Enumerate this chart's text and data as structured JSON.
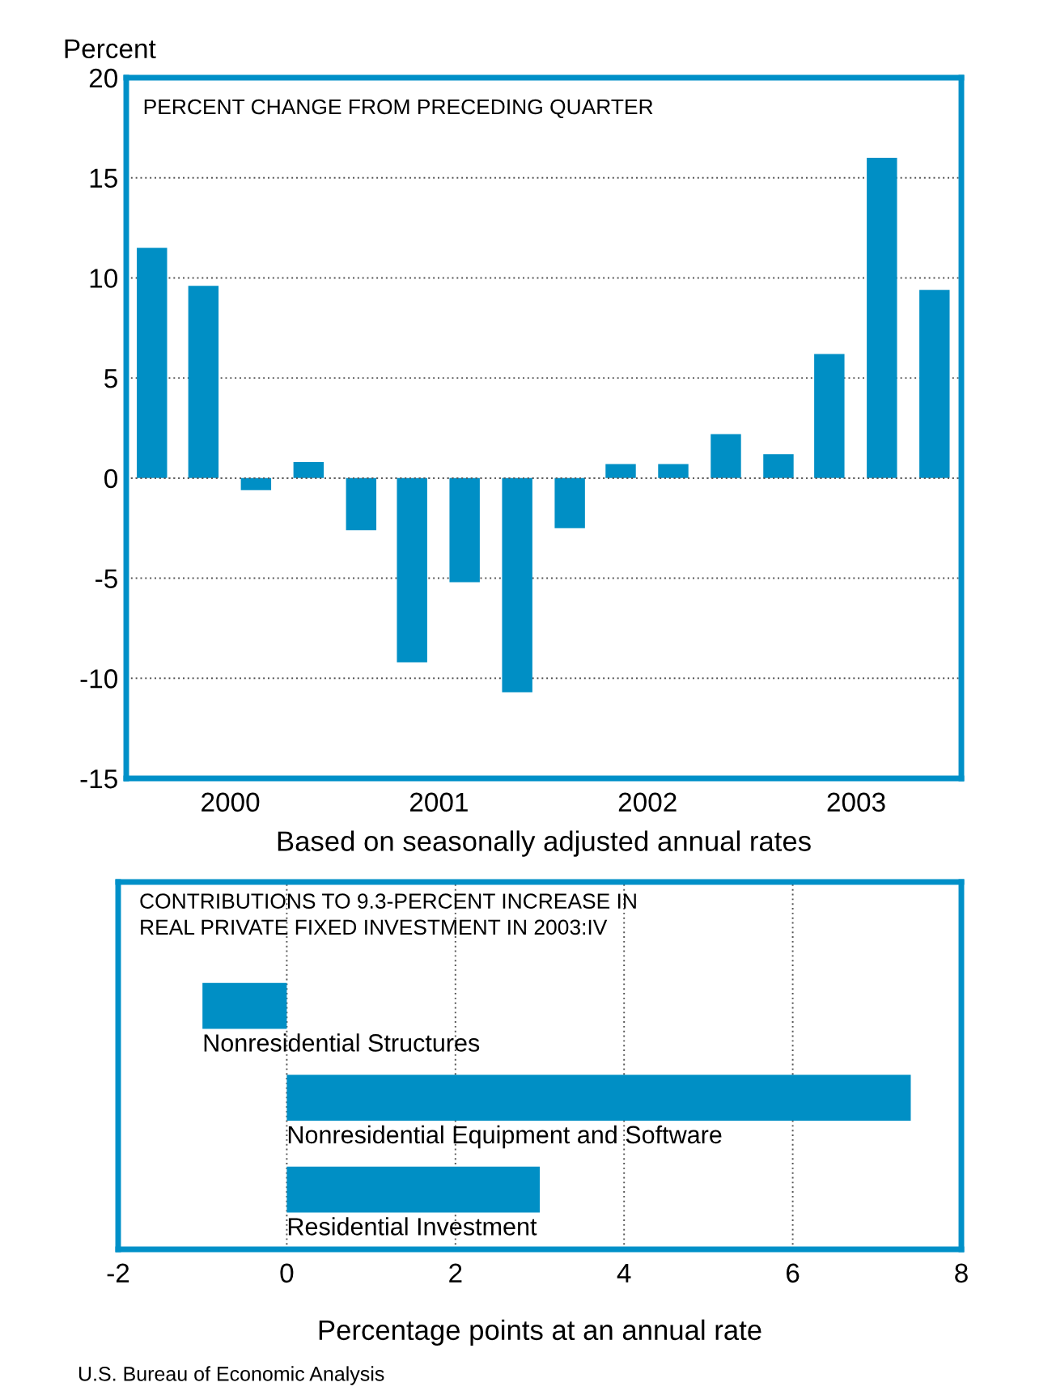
{
  "chart_data": [
    {
      "type": "bar",
      "title": "PERCENT CHANGE FROM PRECEDING QUARTER",
      "ylabel": "Percent",
      "xlabel": "Based on seasonally adjusted annual rates",
      "x": [
        "2000-02-15",
        "2000-05-15",
        "2000-08-15",
        "2000-11-15",
        "2001-02-15",
        "2001-05-15",
        "2001-08-15",
        "2001-11-15",
        "2002-02-15",
        "2002-05-15",
        "2002-08-15",
        "2002-11-15",
        "2003-02-15",
        "2003-05-15",
        "2003-08-15",
        "2003-11-15"
      ],
      "values": [
        11.5,
        9.6,
        -0.6,
        0.8,
        -2.6,
        -9.2,
        -5.2,
        -10.7,
        -2.5,
        0.7,
        0.7,
        2.2,
        1.2,
        6.2,
        16.0,
        9.4
      ],
      "color": "#008fc5",
      "xlim": [
        "2000-01-01",
        "2004-01-01"
      ],
      "xticks": [
        {
          "value": "2000-07-01",
          "label": "2000"
        },
        {
          "value": "2001-07-01",
          "label": "2001"
        },
        {
          "value": "2002-07-01",
          "label": "2002"
        },
        {
          "value": "2003-07-01",
          "label": "2003"
        }
      ],
      "ylim": [
        -15,
        20
      ],
      "yticks": [
        -15,
        -10,
        -5,
        0,
        5,
        10,
        15,
        20
      ],
      "grid": "y"
    },
    {
      "type": "bar",
      "orientation": "horizontal",
      "title": "CONTRIBUTIONS TO 9.3-PERCENT INCREASE IN\nREAL PRIVATE FIXED INVESTMENT IN 2003:IV",
      "categories": [
        "Nonresidential Structures",
        "Nonresidential Equipment and Software",
        "Residential Investment"
      ],
      "values": [
        -1.0,
        7.4,
        3.0
      ],
      "color": "#008fc5",
      "xlim": [
        -2,
        8
      ],
      "xticks": [
        -2,
        0,
        2,
        4,
        6,
        8
      ],
      "grid": "x",
      "xlabel": "Percentage points at an annual rate",
      "annotations": [
        "U.S. Bureau of Economic Analysis"
      ]
    }
  ]
}
